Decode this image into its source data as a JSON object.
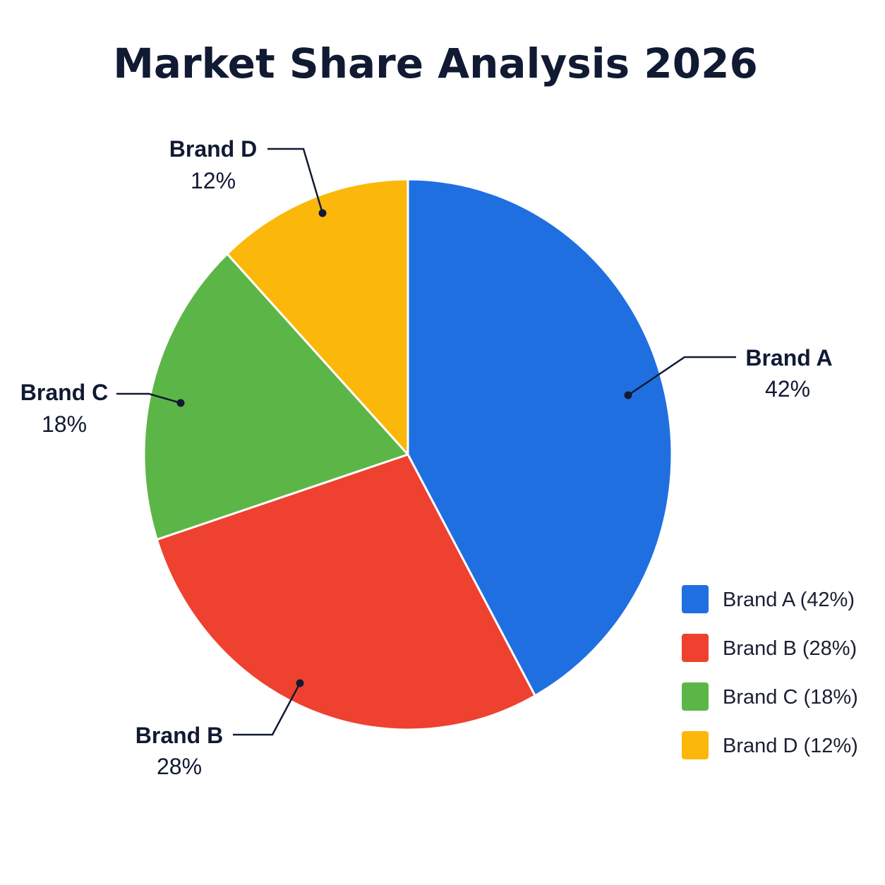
{
  "chart_data": {
    "type": "pie",
    "title": "Market Share Analysis 2026",
    "slices": [
      {
        "name": "Brand A",
        "value": 42,
        "value_label": "42%",
        "legend_label": "Brand A (42%)",
        "color": "#1f6fe0"
      },
      {
        "name": "Brand B",
        "value": 28,
        "value_label": "28%",
        "legend_label": "Brand B (28%)",
        "color": "#ef4130"
      },
      {
        "name": "Brand C",
        "value": 18,
        "value_label": "18%",
        "legend_label": "Brand C (18%)",
        "color": "#5cb647"
      },
      {
        "name": "Brand D",
        "value": 12,
        "value_label": "12%",
        "legend_label": "Brand D (12%)",
        "color": "#fbb80b"
      }
    ],
    "start_angle": "12 o'clock",
    "direction": "clockwise",
    "legend_placement": "bottom-right"
  }
}
